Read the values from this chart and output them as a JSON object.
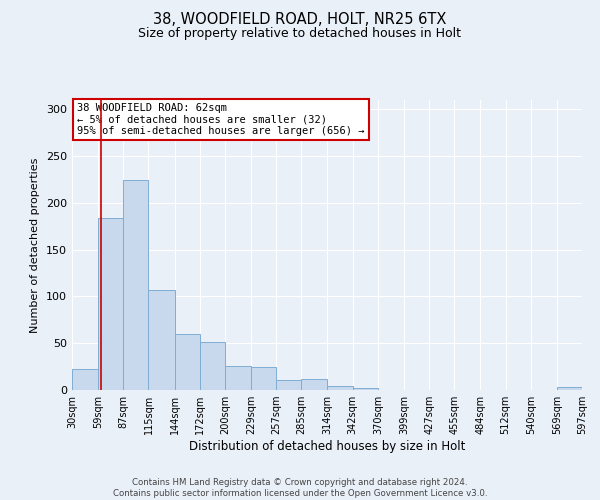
{
  "title_line1": "38, WOODFIELD ROAD, HOLT, NR25 6TX",
  "title_line2": "Size of property relative to detached houses in Holt",
  "xlabel": "Distribution of detached houses by size in Holt",
  "ylabel": "Number of detached properties",
  "bar_color": "#c8d9ee",
  "bar_edge_color": "#7eadd4",
  "background_color": "#eaf0f8",
  "grid_color": "#ffffff",
  "annotation_text": "38 WOODFIELD ROAD: 62sqm\n← 5% of detached houses are smaller (32)\n95% of semi-detached houses are larger (656) →",
  "annotation_box_color": "#ffffff",
  "annotation_border_color": "#cc0000",
  "vline_x": 62,
  "vline_color": "#cc0000",
  "bin_edges": [
    30,
    59,
    87,
    115,
    144,
    172,
    200,
    229,
    257,
    285,
    314,
    342,
    370,
    399,
    427,
    455,
    484,
    512,
    540,
    569,
    597
  ],
  "bar_heights": [
    22,
    184,
    224,
    107,
    60,
    51,
    26,
    25,
    11,
    12,
    4,
    2,
    0,
    0,
    0,
    0,
    0,
    0,
    0,
    3
  ],
  "ylim": [
    0,
    310
  ],
  "yticks": [
    0,
    50,
    100,
    150,
    200,
    250,
    300
  ],
  "footnote": "Contains HM Land Registry data © Crown copyright and database right 2024.\nContains public sector information licensed under the Open Government Licence v3.0.",
  "tick_labels": [
    "30sqm",
    "59sqm",
    "87sqm",
    "115sqm",
    "144sqm",
    "172sqm",
    "200sqm",
    "229sqm",
    "257sqm",
    "285sqm",
    "314sqm",
    "342sqm",
    "370sqm",
    "399sqm",
    "427sqm",
    "455sqm",
    "484sqm",
    "512sqm",
    "540sqm",
    "569sqm",
    "597sqm"
  ]
}
